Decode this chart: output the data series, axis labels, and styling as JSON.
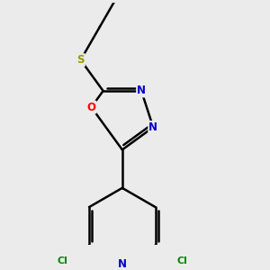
{
  "bg_color": "#ebebeb",
  "atom_colors": {
    "C": "#000000",
    "N": "#0000cc",
    "O": "#ff0000",
    "S": "#999900",
    "Cl": "#008800"
  },
  "bond_color": "#000000",
  "bond_width": 1.8,
  "font_size_atoms": 8.5,
  "font_size_cl": 8.0,
  "xlim": [
    -2.5,
    3.5
  ],
  "ylim": [
    -5.0,
    4.5
  ]
}
